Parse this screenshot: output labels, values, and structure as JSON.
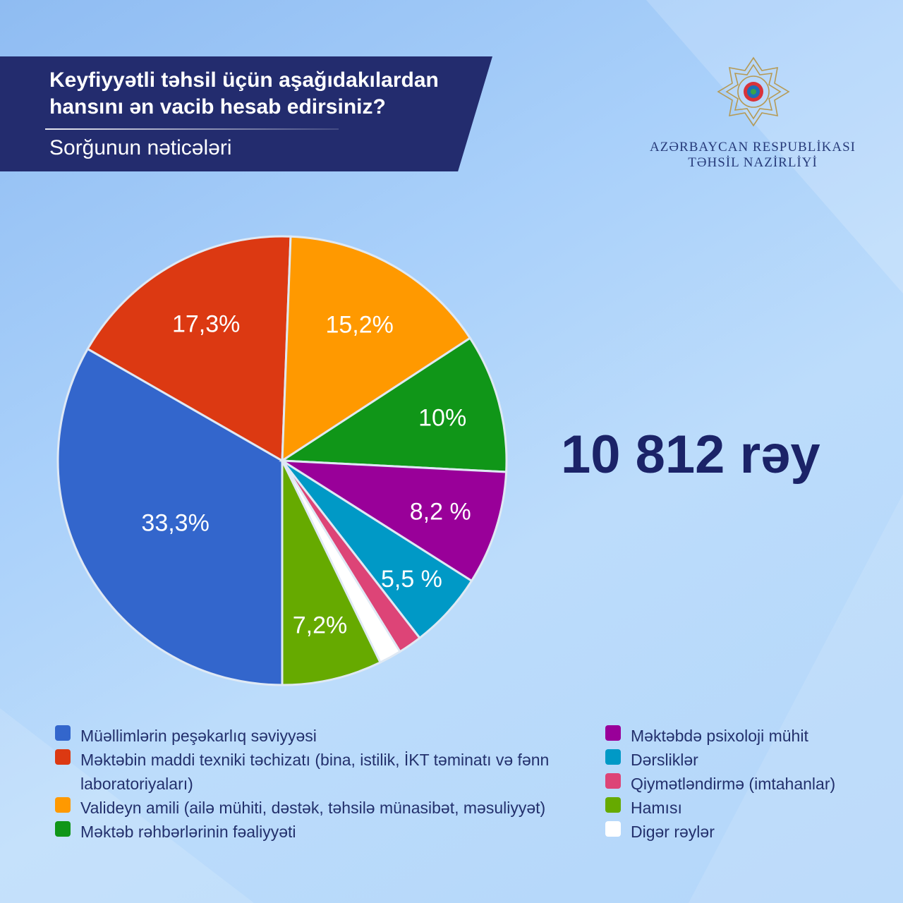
{
  "header": {
    "title_line1": "Keyfiyyətli təhsil üçün aşağıdakılardan",
    "title_line2": "hansını ən vacib hesab edirsiniz?",
    "subtitle": "Sorğunun nəticələri"
  },
  "org": {
    "line1": "AZƏRBAYCAN RESPUBLİKASI",
    "line2": "TƏHSİL NAZİRLİYİ"
  },
  "summary": {
    "total": "10 812 rəy"
  },
  "chart_data": {
    "type": "pie",
    "slices": [
      {
        "name": "Müəllimlərin peşəkarlıq səviyyəsi",
        "value": 33.3,
        "label": "33,3%",
        "color": "#3366cc"
      },
      {
        "name": "Məktəbin maddi texniki təchizatı (bina, istilik, İKT təminatı və fənn laboratoriyaları)",
        "value": 17.3,
        "label": "17,3%",
        "color": "#dc3912"
      },
      {
        "name": "Valideyn amili (ailə mühiti, dəstək, təhsilə münasibət, məsuliyyət)",
        "value": 15.2,
        "label": "15,2%",
        "color": "#ff9900"
      },
      {
        "name": "Məktəb rəhbərlərinin fəaliyyəti",
        "value": 10,
        "label": "10%",
        "color": "#109618"
      },
      {
        "name": "Məktəbdə psixoloji mühit",
        "value": 8.2,
        "label": "8,2 %",
        "color": "#990099"
      },
      {
        "name": "Dərsliklər",
        "value": 5.5,
        "label": "5,5 %",
        "color": "#0099c6"
      },
      {
        "name": "Qiymətləndirmə (imtahanlar)",
        "value": 1.7,
        "label": "",
        "color": "#dd4477"
      },
      {
        "name": "Digər rəylər",
        "value": 1.6,
        "label": "",
        "color": "#ffffff"
      },
      {
        "name": "Hamısı",
        "value": 7.2,
        "label": "7,2%",
        "color": "#66aa00"
      }
    ],
    "legend_left": [
      {
        "label": "Müəllimlərin peşəkarlıq səviyyəsi",
        "color": "#3366cc"
      },
      {
        "label": "Məktəbin maddi texniki təchizatı (bina, istilik, İKT təminatı və fənn laboratoriyaları)",
        "color": "#dc3912"
      },
      {
        "label": "Valideyn amili (ailə mühiti, dəstək, təhsilə münasibət, məsuliyyət)",
        "color": "#ff9900"
      },
      {
        "label": "Məktəb rəhbərlərinin fəaliyyəti",
        "color": "#109618"
      }
    ],
    "legend_right": [
      {
        "label": "Məktəbdə psixoloji mühit",
        "color": "#990099"
      },
      {
        "label": "Dərsliklər",
        "color": "#0099c6"
      },
      {
        "label": "Qiymətləndirmə (imtahanlar)",
        "color": "#dd4477"
      },
      {
        "label": "Hamısı",
        "color": "#66aa00"
      },
      {
        "label": "Digər rəylər",
        "color": "#ffffff"
      }
    ]
  }
}
